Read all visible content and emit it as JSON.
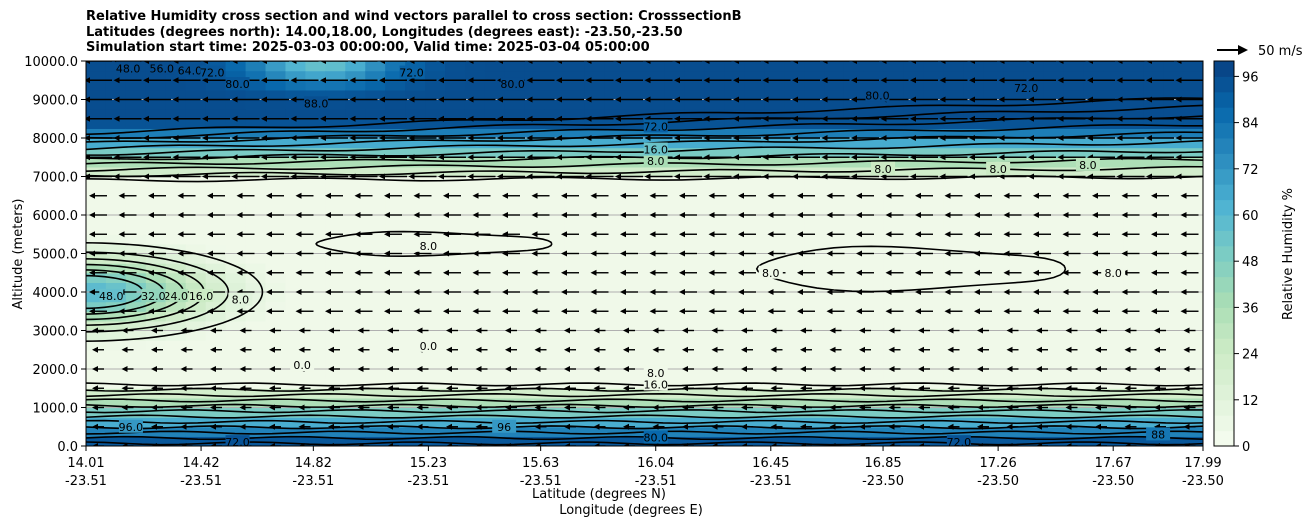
{
  "title": {
    "line1": "Relative Humidity cross section and wind vectors parallel to cross section: CrosssectionB",
    "line2": "Latitudes (degrees north): 14.00,18.00, Longitudes (degrees east): -23.50,-23.50",
    "line3": "Simulation start time: 2025-03-03 00:00:00, Valid time: 2025-03-04 05:00:00"
  },
  "quiver_key": {
    "label": "50 m/s"
  },
  "colors": {
    "cmap": [
      "#f7fcf0",
      "#e0f3db",
      "#ccebc5",
      "#a8ddb5",
      "#7bccc4",
      "#4eb3d3",
      "#2b8cbe",
      "#0868ac",
      "#084081"
    ],
    "contour": "#000000",
    "grid": "#b0b0b0"
  },
  "chart_data": {
    "type": "heatmap",
    "xlabel_line1": "Latitude (degrees N)",
    "xlabel_line2": "Longitude (degrees E)",
    "ylabel": "Altitude (meters)",
    "colorbar_label": "Relative Humidity %",
    "x_ticks": [
      {
        "lat": "14.01",
        "lon": "-23.51"
      },
      {
        "lat": "14.42",
        "lon": "-23.51"
      },
      {
        "lat": "14.82",
        "lon": "-23.51"
      },
      {
        "lat": "15.23",
        "lon": "-23.51"
      },
      {
        "lat": "15.63",
        "lon": "-23.51"
      },
      {
        "lat": "16.04",
        "lon": "-23.51"
      },
      {
        "lat": "16.45",
        "lon": "-23.51"
      },
      {
        "lat": "16.85",
        "lon": "-23.50"
      },
      {
        "lat": "17.26",
        "lon": "-23.50"
      },
      {
        "lat": "17.67",
        "lon": "-23.50"
      },
      {
        "lat": "17.99",
        "lon": "-23.50"
      }
    ],
    "xlim": [
      14.01,
      17.99
    ],
    "ylim": [
      0,
      10000
    ],
    "y_ticks": [
      "0.0",
      "1000.0",
      "2000.0",
      "3000.0",
      "4000.0",
      "5000.0",
      "6000.0",
      "7000.0",
      "8000.0",
      "9000.0",
      "10000.0"
    ],
    "colorbar_ticks": [
      "0",
      "12",
      "24",
      "36",
      "48",
      "60",
      "72",
      "84",
      "96"
    ],
    "colorbar_range": [
      0,
      100
    ],
    "colorbar_step": 4,
    "horizontal_grid": true,
    "wind_vectors": {
      "direction": "toward decreasing latitude",
      "quiver_key_speed_ms": 50
    },
    "contour_labels": [
      {
        "text": "80.0",
        "lat": 16.04,
        "alt": 220
      },
      {
        "text": "96.0",
        "lat": 14.17,
        "alt": 500
      },
      {
        "text": "72.0",
        "lat": 14.55,
        "alt": 100
      },
      {
        "text": "8.0",
        "lat": 16.04,
        "alt": 1900
      },
      {
        "text": "16.0",
        "lat": 16.04,
        "alt": 1600
      },
      {
        "text": "8.0",
        "lat": 16.04,
        "alt": 7400
      },
      {
        "text": "16.0",
        "lat": 16.04,
        "alt": 7700
      },
      {
        "text": "72.0",
        "lat": 16.04,
        "alt": 8300
      },
      {
        "text": "88.0",
        "lat": 14.83,
        "alt": 8900
      },
      {
        "text": "80.0",
        "lat": 15.53,
        "alt": 9400
      },
      {
        "text": "72.0",
        "lat": 15.17,
        "alt": 9700
      },
      {
        "text": "56.0",
        "lat": 14.28,
        "alt": 9800
      },
      {
        "text": "48.0",
        "lat": 14.16,
        "alt": 9800
      },
      {
        "text": "64.0",
        "lat": 14.38,
        "alt": 9750
      },
      {
        "text": "72.0",
        "lat": 14.46,
        "alt": 9700
      },
      {
        "text": "80.0",
        "lat": 14.55,
        "alt": 9400
      },
      {
        "text": "72.0",
        "lat": 17.36,
        "alt": 9300
      },
      {
        "text": "80.0",
        "lat": 16.83,
        "alt": 9100
      },
      {
        "text": "8.0",
        "lat": 16.85,
        "alt": 7200
      },
      {
        "text": "8.0",
        "lat": 17.26,
        "alt": 7200
      },
      {
        "text": "8.0",
        "lat": 17.58,
        "alt": 7300
      },
      {
        "text": "8.0",
        "lat": 15.23,
        "alt": 5200
      },
      {
        "text": "8.0",
        "lat": 16.45,
        "alt": 4500
      },
      {
        "text": "8.0",
        "lat": 17.67,
        "alt": 4500
      },
      {
        "text": "24.0",
        "lat": 14.33,
        "alt": 3900
      },
      {
        "text": "32.0",
        "lat": 14.25,
        "alt": 3900
      },
      {
        "text": "48.0",
        "lat": 14.1,
        "alt": 3900
      },
      {
        "text": "16.0",
        "lat": 14.42,
        "alt": 3900
      },
      {
        "text": "8.0",
        "lat": 14.56,
        "alt": 3800
      },
      {
        "text": "0.0",
        "lat": 14.78,
        "alt": 2100
      },
      {
        "text": "0.0",
        "lat": 15.23,
        "alt": 2600
      },
      {
        "text": "72.0",
        "lat": 17.12,
        "alt": 100
      },
      {
        "text": "96",
        "lat": 15.5,
        "alt": 500
      },
      {
        "text": "88",
        "lat": 17.83,
        "alt": 300
      }
    ]
  }
}
